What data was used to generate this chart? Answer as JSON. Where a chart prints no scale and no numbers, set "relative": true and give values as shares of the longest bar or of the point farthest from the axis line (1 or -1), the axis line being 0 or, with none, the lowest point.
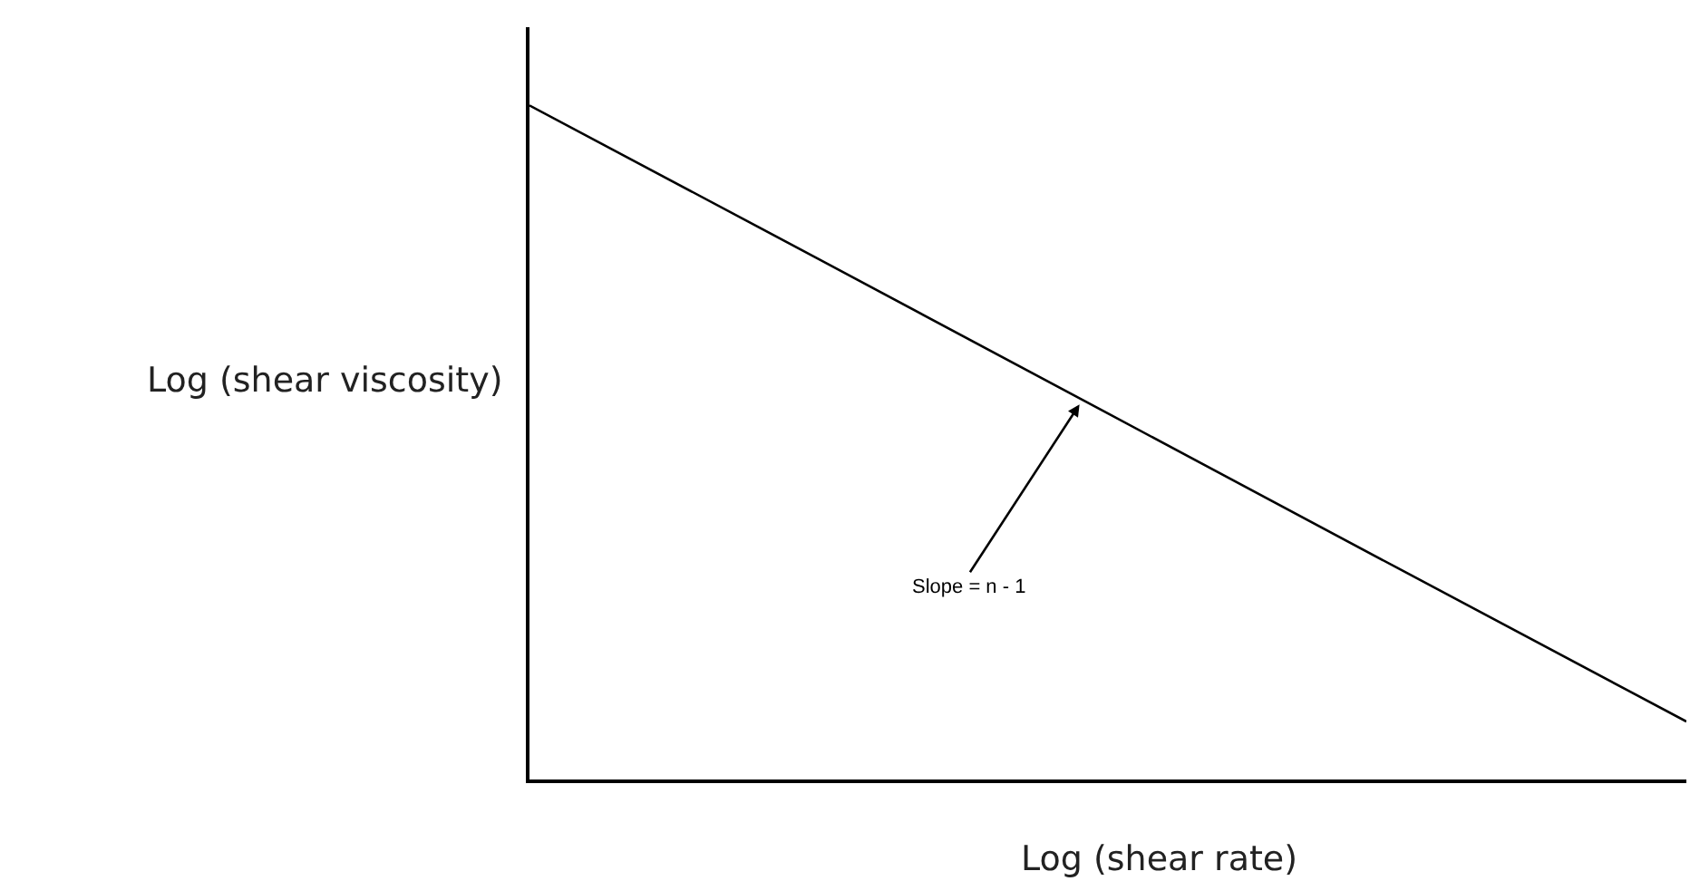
{
  "chart_data": {
    "type": "line",
    "relative": true,
    "categories": [
      null,
      null,
      null,
      null,
      null
    ],
    "series": [
      {
        "color": "#000000",
        "values": [
          1,
          0.772,
          0.543,
          0.314,
          0.086
        ]
      }
    ],
    "xlabel": "Log (shear rate)",
    "ylabel": "Log (shear viscosity)",
    "annotations": [
      "Slope = n - 1"
    ]
  }
}
